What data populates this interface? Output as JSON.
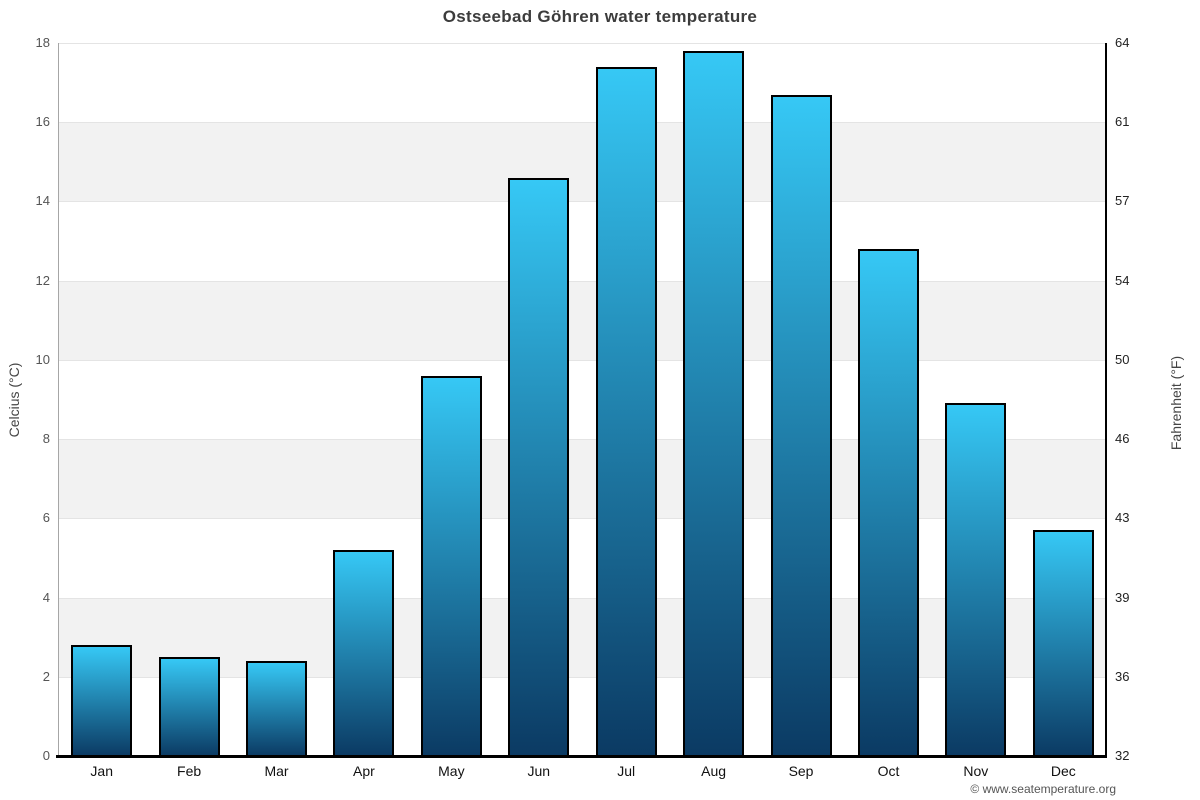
{
  "chart_data": {
    "type": "bar",
    "title": "Ostseebad Göhren water temperature",
    "categories": [
      "Jan",
      "Feb",
      "Mar",
      "Apr",
      "May",
      "Jun",
      "Jul",
      "Aug",
      "Sep",
      "Oct",
      "Nov",
      "Dec"
    ],
    "values": [
      2.8,
      2.5,
      2.4,
      5.2,
      9.6,
      14.6,
      17.4,
      17.8,
      16.7,
      12.8,
      8.9,
      5.7
    ],
    "series_name": "Water temperature (°C)",
    "ylabel_left": "Celcius (°C)",
    "ylabel_right": "Fahrenheit (°F)",
    "xlabel": "",
    "ylim": [
      0,
      18
    ],
    "ytick_pairs": [
      {
        "celsius": 0,
        "fahrenheit": 32
      },
      {
        "celsius": 2,
        "fahrenheit": 36
      },
      {
        "celsius": 4,
        "fahrenheit": 39
      },
      {
        "celsius": 6,
        "fahrenheit": 43
      },
      {
        "celsius": 8,
        "fahrenheit": 46
      },
      {
        "celsius": 10,
        "fahrenheit": 50
      },
      {
        "celsius": 12,
        "fahrenheit": 54
      },
      {
        "celsius": 14,
        "fahrenheit": 57
      },
      {
        "celsius": 16,
        "fahrenheit": 61
      },
      {
        "celsius": 18,
        "fahrenheit": 64
      }
    ],
    "grid": true,
    "legend_position": "none",
    "colors": {
      "bar_gradient_top": "#36c8f5",
      "bar_gradient_bottom": "#0b3a63",
      "bar_border": "#000000",
      "band_white": "#ffffff",
      "band_gray": "#f2f2f2",
      "gridline": "#e4e4e4",
      "axis_left_line": "#a6a6a6",
      "axis_right_line": "#000000",
      "axis_bottom_line": "#000000",
      "title_text": "#3c3c3c"
    }
  },
  "footer": {
    "credit": "© www.seatemperature.org"
  }
}
